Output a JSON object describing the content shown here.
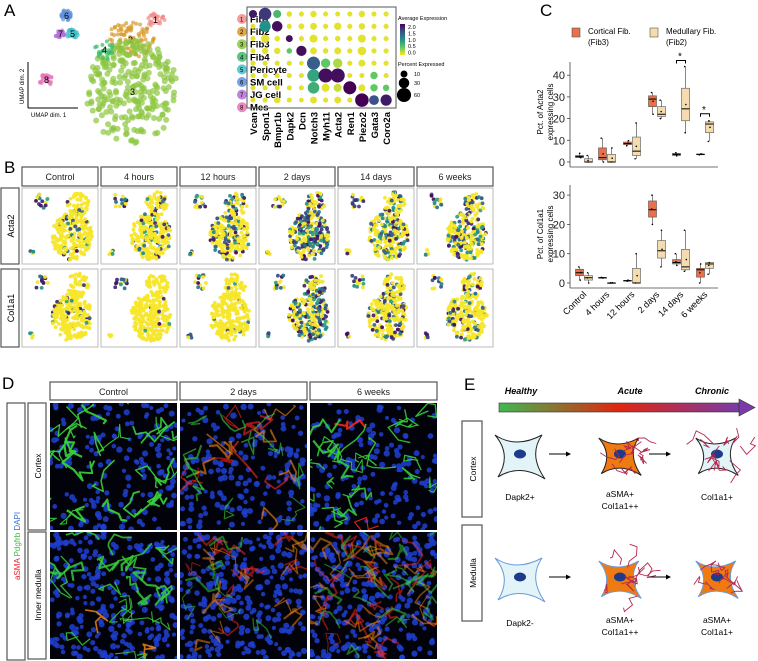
{
  "panels": {
    "a": "A",
    "b": "B",
    "c": "C",
    "d": "D",
    "e": "E"
  },
  "panel_a": {
    "umap_axis_x": "UMAP dim. 1",
    "umap_axis_y": "UMAP dim. 2",
    "clusters": [
      {
        "id": "1",
        "name": "Fib1",
        "color": "#f28b8b"
      },
      {
        "id": "2",
        "name": "Fib2",
        "color": "#d99a2b"
      },
      {
        "id": "3",
        "name": "Fib3",
        "color": "#8cc63f"
      },
      {
        "id": "4",
        "name": "Fib4",
        "color": "#3dbb6a"
      },
      {
        "id": "5",
        "name": "Pericyte",
        "color": "#3fc0c9"
      },
      {
        "id": "6",
        "name": "SM cell",
        "color": "#5d8fdc"
      },
      {
        "id": "7",
        "name": "JG cell",
        "color": "#b36fd9"
      },
      {
        "id": "8",
        "name": "Mes",
        "color": "#e873b6"
      }
    ],
    "dotplot": {
      "genes": [
        "Vcan",
        "Spon1",
        "Bmpr1b",
        "Dapk2",
        "Dcn",
        "Notch3",
        "Myh11",
        "Acta2",
        "Ren1",
        "Piezo2",
        "Gata3",
        "Coro2a"
      ],
      "avg_expression": [
        [
          2.2,
          2.0,
          0.8,
          0.1,
          0.1,
          0.1,
          0.1,
          0.1,
          0.1,
          0.1,
          0.1,
          0.1
        ],
        [
          0.1,
          1.2,
          2.3,
          0.1,
          0.1,
          0.1,
          0.1,
          0.1,
          0.1,
          0.1,
          0.1,
          0.1
        ],
        [
          0.1,
          0.1,
          0.1,
          2.3,
          0.1,
          0.1,
          0.1,
          0.1,
          0.1,
          0.1,
          0.1,
          0.1
        ],
        [
          0.1,
          0.1,
          0.1,
          0.6,
          2.3,
          0.1,
          0.1,
          0.1,
          0.1,
          0.1,
          0.1,
          0.1
        ],
        [
          0.1,
          0.1,
          0.1,
          0.1,
          0.1,
          1.7,
          0.6,
          0.3,
          0.1,
          0.1,
          0.1,
          0.1
        ],
        [
          0.1,
          0.1,
          0.1,
          0.1,
          0.1,
          1.0,
          2.3,
          2.3,
          0.1,
          0.1,
          0.6,
          0.1
        ],
        [
          0.1,
          0.1,
          0.1,
          0.1,
          0.1,
          0.9,
          0.1,
          0.2,
          2.4,
          0.1,
          0.6,
          0.6
        ],
        [
          0.1,
          0.1,
          0.1,
          0.1,
          0.1,
          0.1,
          0.1,
          0.1,
          0.1,
          2.4,
          1.8,
          2.2
        ]
      ],
      "percent_expressed": [
        [
          15,
          45,
          15,
          5,
          4,
          8,
          4,
          4,
          4,
          8,
          4,
          4
        ],
        [
          4,
          35,
          30,
          4,
          6,
          10,
          4,
          12,
          4,
          8,
          4,
          4
        ],
        [
          4,
          15,
          5,
          10,
          4,
          15,
          4,
          5,
          4,
          15,
          4,
          4
        ],
        [
          4,
          8,
          8,
          5,
          28,
          10,
          5,
          10,
          4,
          18,
          4,
          4
        ],
        [
          4,
          4,
          4,
          4,
          3,
          50,
          22,
          22,
          4,
          10,
          4,
          4
        ],
        [
          4,
          4,
          4,
          4,
          4,
          45,
          60,
          60,
          4,
          4,
          12,
          4
        ],
        [
          4,
          4,
          4,
          4,
          4,
          38,
          15,
          15,
          50,
          10,
          12,
          8
        ],
        [
          4,
          4,
          8,
          4,
          3,
          10,
          4,
          10,
          4,
          55,
          25,
          35
        ]
      ],
      "color_legend_title": "Average Expression",
      "color_ticks": [
        "2.0",
        "1.5",
        "1.0",
        "0.5",
        "0.0"
      ],
      "size_legend_title": "Percent Expressed",
      "size_ticks": [
        "10",
        "30",
        "60"
      ]
    }
  },
  "panel_b": {
    "timepoints": [
      "Control",
      "4 hours",
      "12 hours",
      "2 days",
      "14 days",
      "6 weeks"
    ],
    "genes": [
      "Acta2",
      "Col1a1"
    ]
  },
  "chart_data": {
    "type": "box",
    "legend": [
      {
        "name_line1": "Cortical Fib.",
        "name_line2": "(Fib3)",
        "color": "#e8704a"
      },
      {
        "name_line1": "Medullary Fib.",
        "name_line2": "(Fib2)",
        "color": "#f5dcae"
      }
    ],
    "categories": [
      "Control",
      "4 hours",
      "12 hours",
      "2 days",
      "14 days",
      "6 weeks"
    ],
    "plots": [
      {
        "ylabel_line1": "Pct. of Acta2",
        "ylabel_line2": "expressing cells",
        "ylim": [
          0,
          45
        ],
        "yticks": [
          "0",
          "10",
          "20",
          "30",
          "40"
        ],
        "significance": [
          {
            "category": "14 days",
            "label": "*"
          },
          {
            "category": "6 weeks",
            "label": "*"
          }
        ],
        "series": [
          {
            "name": "Cortical Fib. (Fib3)",
            "boxes": [
              [
                2,
                2,
                2.5,
                3,
                4
              ],
              [
                0,
                1,
                2,
                6.5,
                11
              ],
              [
                7.5,
                8,
                8.5,
                9.2,
                9.8
              ],
              [
                22,
                25.5,
                29,
                30.5,
                32
              ],
              [
                2.8,
                3,
                3.5,
                4,
                4.3
              ],
              [
                3.3,
                3.4,
                3.5,
                3.7,
                3.8
              ]
            ]
          },
          {
            "name": "Medullary Fib. (Fib2)",
            "boxes": [
              [
                0,
                0,
                0,
                1.5,
                3
              ],
              [
                0,
                0,
                0,
                3.5,
                6.5
              ],
              [
                1.5,
                3,
                5,
                11.5,
                18
              ],
              [
                20,
                21,
                22,
                25.5,
                28.5
              ],
              [
                13.5,
                19,
                24.5,
                34,
                44
              ],
              [
                9.5,
                13.5,
                17.5,
                18.5,
                19
              ]
            ]
          }
        ]
      },
      {
        "ylabel_line1": "Pct. of Col1a1",
        "ylabel_line2": "expressing cells",
        "ylim": [
          0,
          32
        ],
        "yticks": [
          "0",
          "10",
          "20",
          "30"
        ],
        "significance": [],
        "series": [
          {
            "name": "Cortical Fib. (Fib3)",
            "boxes": [
              [
                1,
                2.5,
                3.5,
                4.7,
                5.5
              ],
              [
                1.7,
                1.7,
                1.8,
                1.9,
                1.9
              ],
              [
                0.6,
                0.7,
                0.8,
                0.9,
                1
              ],
              [
                20,
                22.5,
                25,
                28,
                30
              ],
              [
                6,
                6.5,
                7,
                8,
                10
              ],
              [
                0,
                2,
                4.5,
                5,
                6.5
              ]
            ]
          },
          {
            "name": "Medullary Fib. (Fib2)",
            "boxes": [
              [
                0,
                1,
                1.8,
                2.5,
                3.5
              ],
              [
                0,
                0,
                0,
                0.1,
                0.1
              ],
              [
                0,
                0,
                0,
                5,
                10
              ],
              [
                5.5,
                8.5,
                11,
                14.5,
                18
              ],
              [
                4,
                4.5,
                5.5,
                11.5,
                18
              ],
              [
                3,
                5,
                6.5,
                7,
                7
              ]
            ]
          }
        ]
      }
    ]
  },
  "panel_d": {
    "stain_label": {
      "asma": "aSMA",
      "pdgfrb": "Pdgfrb",
      "dapi": "DAPI"
    },
    "stain_colors": {
      "asma": "#e8202a",
      "pdgfrb": "#3cb83c",
      "dapi": "#3a6fd8"
    },
    "columns": [
      "Control",
      "2 days",
      "6 weeks"
    ],
    "rows": [
      "Cortex",
      "Inner medulla"
    ]
  },
  "panel_e": {
    "stages": [
      "Healthy",
      "Acute",
      "Chronic"
    ],
    "rows": [
      {
        "label": "Cortex",
        "cells": [
          {
            "line1": "Dapk2+",
            "line2": ""
          },
          {
            "line1": "aSMA+",
            "line2": "Col1a1++"
          },
          {
            "line1": "Col1a1+",
            "line2": ""
          }
        ]
      },
      {
        "label": "Medulla",
        "cells": [
          {
            "line1": "Dapk2-",
            "line2": ""
          },
          {
            "line1": "aSMA+",
            "line2": "Col1a1++"
          },
          {
            "line1": "aSMA+",
            "line2": "Col1a1+"
          }
        ]
      }
    ]
  }
}
